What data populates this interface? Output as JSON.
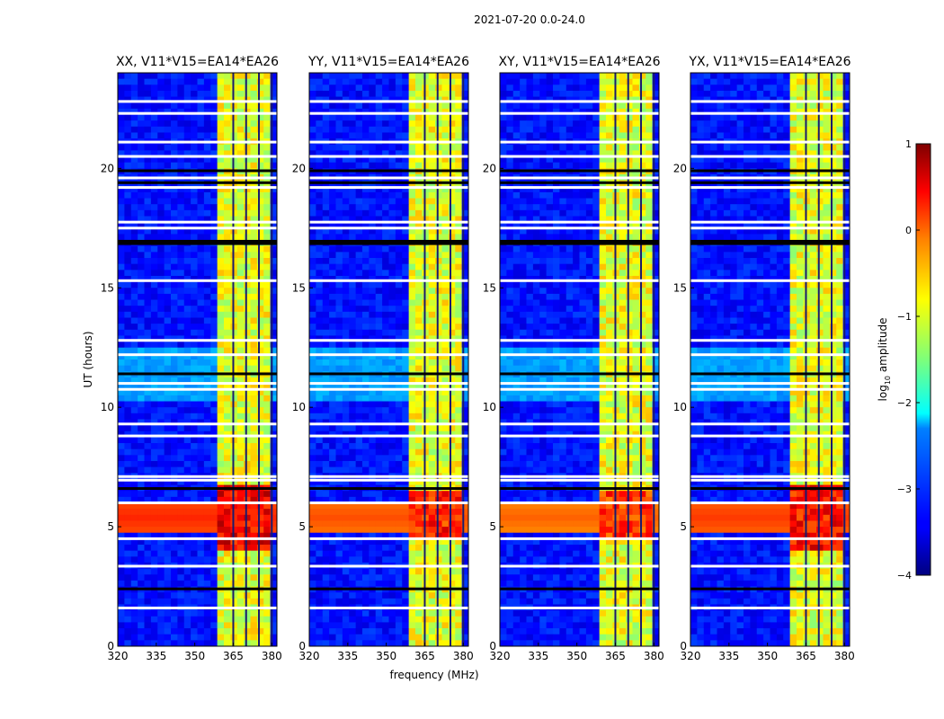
{
  "figure": {
    "suptitle": "2021-07-20 0.0-24.0",
    "xlabel": "frequency (MHz)",
    "ylabel": "UT (hours)"
  },
  "colorbar": {
    "label": "log",
    "label_sub": "10",
    "label_rest": " amplitude",
    "ticks": [
      "1",
      "0",
      "−1",
      "−2",
      "−3",
      "−4"
    ],
    "colormap": "jet",
    "range": [
      -4,
      1
    ]
  },
  "chart_data": [
    {
      "type": "heatmap",
      "title": "XX, V11*V15=EA14*EA26",
      "xlabel": "frequency (MHz)",
      "ylabel": "UT (hours)",
      "xlim": [
        320,
        382
      ],
      "ylim": [
        0,
        24
      ],
      "xticks": [
        "320",
        "335",
        "350",
        "365",
        "380"
      ],
      "yticks": [
        "0",
        "5",
        "10",
        "15",
        "20"
      ],
      "value_label": "log10 amplitude",
      "background_level": -3.3,
      "rfi_band_MHz": [
        360,
        380
      ],
      "rfi_band_level": -1.0,
      "strong_event_UT": [
        4.0,
        6.8
      ],
      "strong_event_level": 0.6
    },
    {
      "type": "heatmap",
      "title": "YY, V11*V15=EA14*EA26",
      "xlabel": "frequency (MHz)",
      "ylabel": "UT (hours)",
      "xlim": [
        320,
        382
      ],
      "ylim": [
        0,
        24
      ],
      "xticks": [
        "320",
        "335",
        "350",
        "365",
        "380"
      ],
      "yticks": [
        "0",
        "5",
        "10",
        "15",
        "20"
      ],
      "value_label": "log10 amplitude",
      "background_level": -3.3,
      "rfi_band_MHz": [
        360,
        380
      ],
      "rfi_band_level": -1.0,
      "strong_event_UT": [
        4.5,
        6.5
      ],
      "strong_event_level": 0.4
    },
    {
      "type": "heatmap",
      "title": "XY, V11*V15=EA14*EA26",
      "xlabel": "frequency (MHz)",
      "ylabel": "UT (hours)",
      "xlim": [
        320,
        382
      ],
      "ylim": [
        0,
        24
      ],
      "xticks": [
        "320",
        "335",
        "350",
        "365",
        "380"
      ],
      "yticks": [
        "0",
        "5",
        "10",
        "15",
        "20"
      ],
      "value_label": "log10 amplitude",
      "background_level": -3.3,
      "rfi_band_MHz": [
        360,
        380
      ],
      "rfi_band_level": -1.0,
      "strong_event_UT": [
        4.5,
        6.5
      ],
      "strong_event_level": 0.3
    },
    {
      "type": "heatmap",
      "title": "YX, V11*V15=EA14*EA26",
      "xlabel": "frequency (MHz)",
      "ylabel": "UT (hours)",
      "xlim": [
        320,
        382
      ],
      "ylim": [
        0,
        24
      ],
      "xticks": [
        "320",
        "335",
        "350",
        "365",
        "380"
      ],
      "yticks": [
        "0",
        "5",
        "10",
        "15",
        "20"
      ],
      "value_label": "log10 amplitude",
      "background_level": -3.3,
      "rfi_band_MHz": [
        360,
        380
      ],
      "rfi_band_level": -1.0,
      "strong_event_UT": [
        4.0,
        6.8
      ],
      "strong_event_level": 0.5
    }
  ]
}
